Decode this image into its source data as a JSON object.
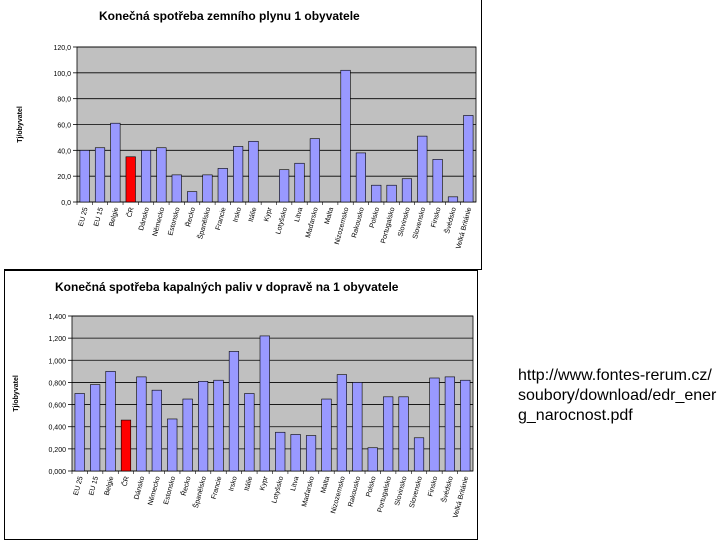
{
  "colors": {
    "plot_bg": "#c0c0c0",
    "bar": "#9999ff",
    "highlight": "#ff0000",
    "grid": "#000000"
  },
  "source": {
    "text": "http://www.fontes-rerum.cz/soubory/download/edr_energ_narocnost.pdf"
  },
  "chart_data": [
    {
      "type": "bar",
      "title": "Konečná spotřeba zemního plynu 1 obyvatele",
      "xlabel": "",
      "ylabel": "Tj/obyvatel",
      "ylim": [
        0,
        120
      ],
      "yticks": [
        "0,0",
        "20,0",
        "40,0",
        "60,0",
        "80,0",
        "100,0",
        "120,0"
      ],
      "categories": [
        "EU 25",
        "EU 15",
        "Belgie",
        "ČR",
        "Dánsko",
        "Německo",
        "Estonsko",
        "Řecko",
        "Španělsko",
        "Francie",
        "Irsko",
        "Itálie",
        "Kypr",
        "Lotyšsko",
        "Litva",
        "Maďarsko",
        "Malta",
        "Nizozemsko",
        "Rakousko",
        "Polsko",
        "Portugalsko",
        "Slovinsko",
        "Slovensko",
        "Finsko",
        "Švédsko",
        "Velká Británie"
      ],
      "values": [
        40,
        42,
        61,
        35,
        40,
        42,
        21,
        8,
        21,
        26,
        43,
        47,
        0,
        25,
        30,
        49,
        0,
        102,
        38,
        13,
        13,
        18,
        51,
        33,
        4,
        67
      ],
      "highlight": "ČR"
    },
    {
      "type": "bar",
      "title": "Konečná spotřeba kapalných paliv v dopravě na 1 obyvatele",
      "xlabel": "",
      "ylabel": "Tj/obyvatel",
      "ylim": [
        0,
        1.4
      ],
      "yticks": [
        "0,000",
        "0,200",
        "0,400",
        "0,600",
        "0,800",
        "1,000",
        "1,200",
        "1,400"
      ],
      "categories": [
        "EU 25",
        "EU 15",
        "Belgie",
        "ČR",
        "Dánsko",
        "Německo",
        "Estonsko",
        "Řecko",
        "Španělsko",
        "Francie",
        "Irsko",
        "Itálie",
        "Kypr",
        "Lotyšsko",
        "Litva",
        "Maďarsko",
        "Malta",
        "Nizozemsko",
        "Rakousko",
        "Polsko",
        "Portugalsko",
        "Slovinsko",
        "Slovensko",
        "Finsko",
        "Švédsko",
        "Velká Británie"
      ],
      "values": [
        0.7,
        0.78,
        0.9,
        0.46,
        0.85,
        0.73,
        0.47,
        0.65,
        0.81,
        0.82,
        1.08,
        0.7,
        1.22,
        0.35,
        0.33,
        0.32,
        0.65,
        0.87,
        0.8,
        0.21,
        0.67,
        0.67,
        0.3,
        0.84,
        0.85,
        0.82
      ],
      "highlight": "ČR"
    }
  ]
}
